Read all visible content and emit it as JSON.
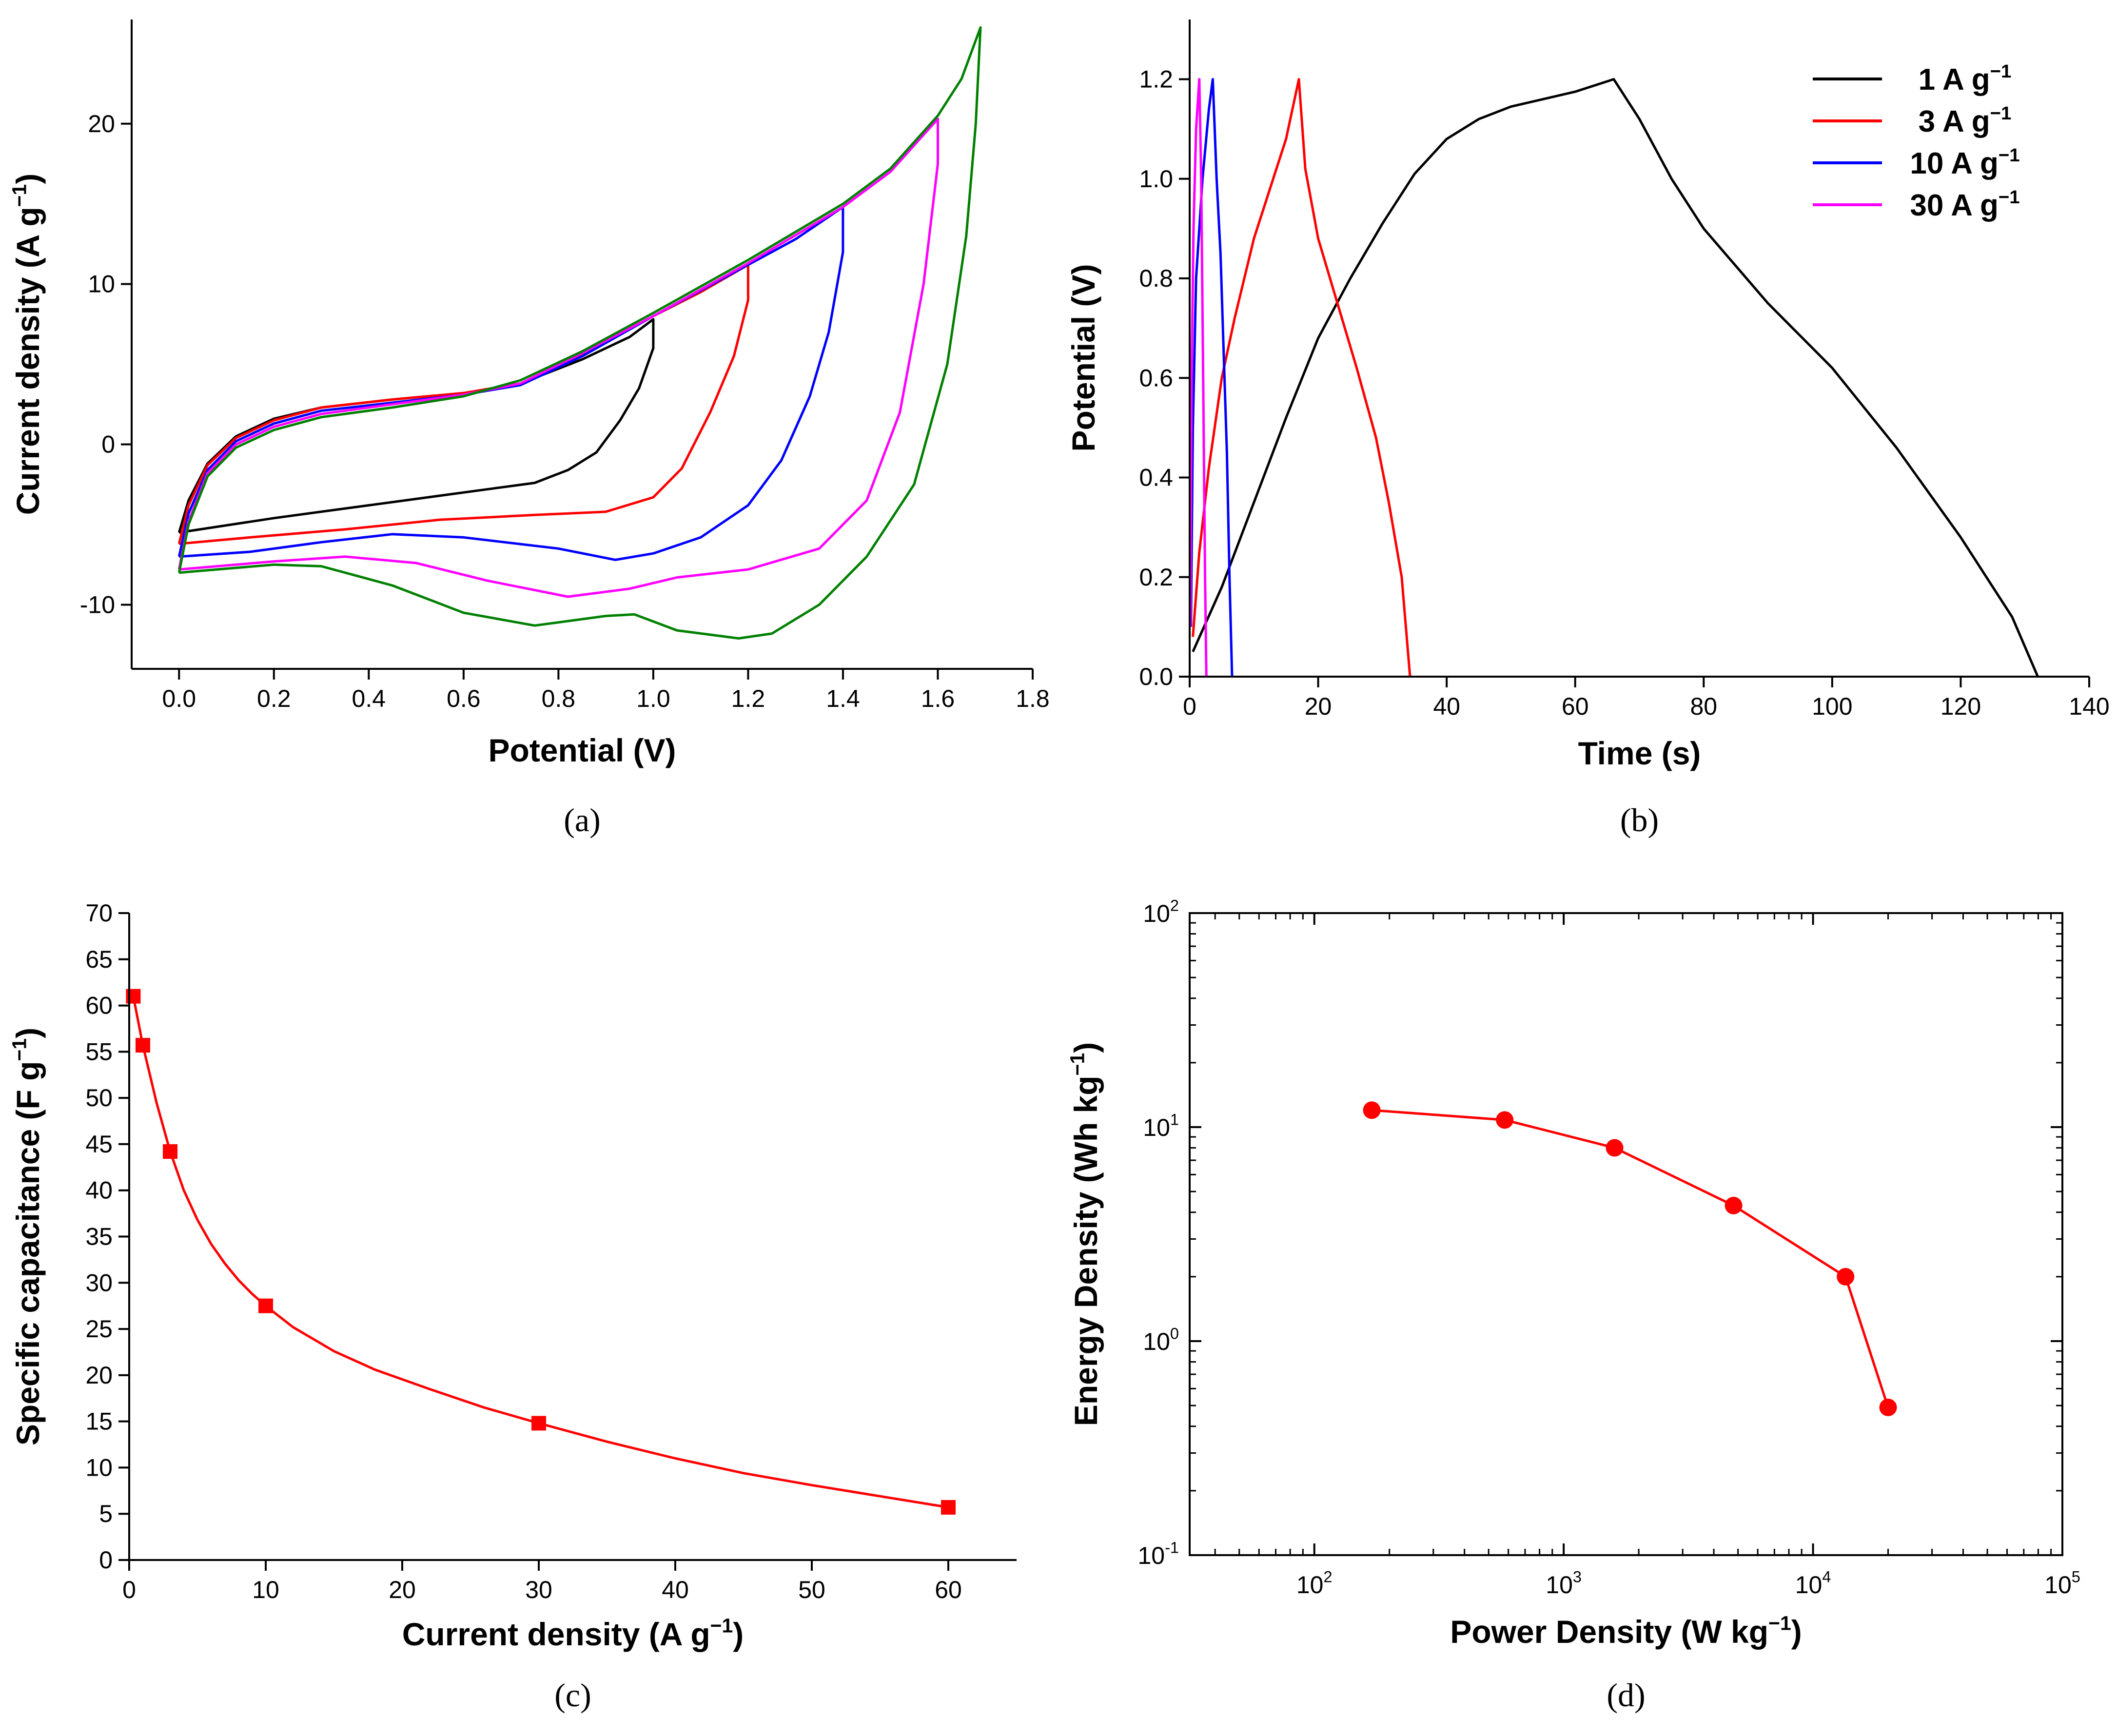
{
  "colors": {
    "black": "#000000",
    "red": "#ff0000",
    "blue": "#0000ff",
    "magenta": "#ff00ff",
    "green": "#008000"
  },
  "panels": [
    {
      "id": "a",
      "caption": "(a)",
      "xlabel": "Potential (V)",
      "ylabel": "Current density (A g⁻¹)",
      "xlim": [
        -0.1,
        1.8
      ],
      "ylim": [
        -14,
        26.5
      ],
      "xticks": [
        "0.0",
        "0.2",
        "0.4",
        "0.6",
        "0.8",
        "1.0",
        "1.2",
        "1.4",
        "1.6",
        "1.8"
      ],
      "yticks": [
        "-10",
        "0",
        "10",
        "20"
      ]
    },
    {
      "id": "b",
      "caption": "(b)",
      "xlabel": "Time (s)",
      "ylabel": "Potential (V)",
      "xlim": [
        0,
        140
      ],
      "ylim": [
        0,
        1.32
      ],
      "xticks": [
        "0",
        "20",
        "40",
        "60",
        "80",
        "100",
        "120",
        "140"
      ],
      "yticks": [
        "0.0",
        "0.2",
        "0.4",
        "0.6",
        "0.8",
        "1.0",
        "1.2"
      ],
      "legend": [
        "1 A g⁻¹",
        "3 A g⁻¹",
        "10 A g⁻¹",
        "30 A g⁻¹"
      ]
    },
    {
      "id": "c",
      "caption": "(c)",
      "xlabel": "Current density (A g⁻¹)",
      "ylabel": "Specific capacitance (F g⁻¹)",
      "xlim": [
        0,
        65
      ],
      "ylim": [
        0,
        70
      ],
      "xticks": [
        "0",
        "10",
        "20",
        "30",
        "40",
        "50",
        "60"
      ],
      "yticks": [
        "0",
        "5",
        "10",
        "15",
        "20",
        "25",
        "30",
        "35",
        "40",
        "45",
        "50",
        "55",
        "60",
        "65",
        "70"
      ]
    },
    {
      "id": "d",
      "caption": "(d)",
      "xlabel": "Power Density (W kg⁻¹)",
      "ylabel": "Energy Density (Wh kg⁻¹)",
      "xlim_log10": [
        1.5,
        5
      ],
      "ylim_log10": [
        -1,
        2
      ],
      "xticks": [
        {
          "b": "10",
          "e": "2"
        },
        {
          "b": "10",
          "e": "3"
        },
        {
          "b": "10",
          "e": "4"
        },
        {
          "b": "10",
          "e": "5"
        }
      ],
      "yticks": [
        {
          "b": "10",
          "e": "-1"
        },
        {
          "b": "10",
          "e": "0"
        },
        {
          "b": "10",
          "e": "1"
        },
        {
          "b": "10",
          "e": "2"
        }
      ]
    }
  ],
  "chart_data": [
    {
      "panel": "a",
      "type": "line",
      "series": [
        {
          "color": "black",
          "points": [
            [
              0.0,
              -5.5
            ],
            [
              0.02,
              -3.5
            ],
            [
              0.06,
              -1.2
            ],
            [
              0.12,
              0.5
            ],
            [
              0.2,
              1.6
            ],
            [
              0.3,
              2.3
            ],
            [
              0.45,
              2.8
            ],
            [
              0.6,
              3.2
            ],
            [
              0.72,
              3.8
            ],
            [
              0.85,
              5.3
            ],
            [
              0.95,
              6.7
            ],
            [
              1.0,
              7.8
            ],
            [
              1.0,
              6.0
            ],
            [
              0.97,
              3.5
            ],
            [
              0.93,
              1.5
            ],
            [
              0.88,
              -0.5
            ],
            [
              0.82,
              -1.6
            ],
            [
              0.75,
              -2.4
            ],
            [
              0.6,
              -3.0
            ],
            [
              0.4,
              -3.8
            ],
            [
              0.2,
              -4.6
            ],
            [
              0.0,
              -5.5
            ]
          ]
        },
        {
          "color": "red",
          "points": [
            [
              0.0,
              -6.2
            ],
            [
              0.02,
              -3.8
            ],
            [
              0.06,
              -1.3
            ],
            [
              0.12,
              0.4
            ],
            [
              0.2,
              1.5
            ],
            [
              0.3,
              2.3
            ],
            [
              0.45,
              2.8
            ],
            [
              0.6,
              3.2
            ],
            [
              0.72,
              3.8
            ],
            [
              0.85,
              5.6
            ],
            [
              1.0,
              8.0
            ],
            [
              1.1,
              9.5
            ],
            [
              1.2,
              11.2
            ],
            [
              1.2,
              9.0
            ],
            [
              1.17,
              5.5
            ],
            [
              1.12,
              2.0
            ],
            [
              1.06,
              -1.5
            ],
            [
              1.0,
              -3.3
            ],
            [
              0.9,
              -4.2
            ],
            [
              0.75,
              -4.4
            ],
            [
              0.55,
              -4.7
            ],
            [
              0.35,
              -5.3
            ],
            [
              0.15,
              -5.8
            ],
            [
              0.0,
              -6.2
            ]
          ]
        },
        {
          "color": "blue",
          "points": [
            [
              0.0,
              -7.0
            ],
            [
              0.02,
              -4.3
            ],
            [
              0.06,
              -1.6
            ],
            [
              0.12,
              0.2
            ],
            [
              0.2,
              1.3
            ],
            [
              0.3,
              2.1
            ],
            [
              0.45,
              2.6
            ],
            [
              0.6,
              3.1
            ],
            [
              0.72,
              3.7
            ],
            [
              0.85,
              5.5
            ],
            [
              1.0,
              8.0
            ],
            [
              1.2,
              11.2
            ],
            [
              1.3,
              12.8
            ],
            [
              1.4,
              14.8
            ],
            [
              1.4,
              12.0
            ],
            [
              1.37,
              7.0
            ],
            [
              1.33,
              3.0
            ],
            [
              1.27,
              -1.0
            ],
            [
              1.2,
              -3.8
            ],
            [
              1.1,
              -5.8
            ],
            [
              1.0,
              -6.8
            ],
            [
              0.92,
              -7.2
            ],
            [
              0.8,
              -6.5
            ],
            [
              0.6,
              -5.8
            ],
            [
              0.45,
              -5.6
            ],
            [
              0.3,
              -6.1
            ],
            [
              0.15,
              -6.7
            ],
            [
              0.0,
              -7.0
            ]
          ]
        },
        {
          "color": "magenta",
          "points": [
            [
              0.0,
              -7.8
            ],
            [
              0.02,
              -4.8
            ],
            [
              0.06,
              -1.8
            ],
            [
              0.12,
              0.0
            ],
            [
              0.2,
              1.1
            ],
            [
              0.3,
              1.9
            ],
            [
              0.45,
              2.5
            ],
            [
              0.6,
              3.1
            ],
            [
              0.72,
              3.8
            ],
            [
              0.85,
              5.7
            ],
            [
              1.0,
              8.0
            ],
            [
              1.2,
              11.3
            ],
            [
              1.4,
              14.8
            ],
            [
              1.5,
              17.0
            ],
            [
              1.6,
              20.3
            ],
            [
              1.6,
              17.5
            ],
            [
              1.57,
              10.0
            ],
            [
              1.52,
              2.0
            ],
            [
              1.45,
              -3.5
            ],
            [
              1.35,
              -6.5
            ],
            [
              1.2,
              -7.8
            ],
            [
              1.05,
              -8.3
            ],
            [
              0.95,
              -9.0
            ],
            [
              0.82,
              -9.5
            ],
            [
              0.65,
              -8.5
            ],
            [
              0.5,
              -7.4
            ],
            [
              0.35,
              -7.0
            ],
            [
              0.2,
              -7.3
            ],
            [
              0.0,
              -7.8
            ]
          ]
        },
        {
          "color": "green",
          "points": [
            [
              0.0,
              -8.0
            ],
            [
              0.02,
              -5.0
            ],
            [
              0.06,
              -2.0
            ],
            [
              0.12,
              -0.2
            ],
            [
              0.2,
              0.9
            ],
            [
              0.3,
              1.7
            ],
            [
              0.45,
              2.3
            ],
            [
              0.6,
              3.0
            ],
            [
              0.72,
              4.0
            ],
            [
              0.85,
              5.8
            ],
            [
              1.0,
              8.2
            ],
            [
              1.2,
              11.5
            ],
            [
              1.4,
              15.0
            ],
            [
              1.5,
              17.2
            ],
            [
              1.6,
              20.5
            ],
            [
              1.65,
              22.8
            ],
            [
              1.69,
              26.0
            ],
            [
              1.68,
              20.0
            ],
            [
              1.66,
              13.0
            ],
            [
              1.62,
              5.0
            ],
            [
              1.55,
              -2.5
            ],
            [
              1.45,
              -7.0
            ],
            [
              1.35,
              -10.0
            ],
            [
              1.25,
              -11.8
            ],
            [
              1.18,
              -12.1
            ],
            [
              1.05,
              -11.6
            ],
            [
              0.96,
              -10.6
            ],
            [
              0.9,
              -10.7
            ],
            [
              0.75,
              -11.3
            ],
            [
              0.6,
              -10.5
            ],
            [
              0.45,
              -8.8
            ],
            [
              0.3,
              -7.6
            ],
            [
              0.2,
              -7.5
            ],
            [
              0.0,
              -8.0
            ]
          ]
        }
      ]
    },
    {
      "panel": "b",
      "type": "line",
      "series": [
        {
          "color": "black",
          "name": "1 A g⁻¹",
          "points": [
            [
              0.5,
              0.05
            ],
            [
              5,
              0.18
            ],
            [
              10,
              0.35
            ],
            [
              15,
              0.52
            ],
            [
              20,
              0.68
            ],
            [
              25,
              0.8
            ],
            [
              30,
              0.91
            ],
            [
              35,
              1.01
            ],
            [
              40,
              1.08
            ],
            [
              45,
              1.12
            ],
            [
              50,
              1.145
            ],
            [
              55,
              1.16
            ],
            [
              60,
              1.175
            ],
            [
              66,
              1.2
            ],
            [
              70,
              1.12
            ],
            [
              75,
              1.0
            ],
            [
              80,
              0.9
            ],
            [
              90,
              0.75
            ],
            [
              100,
              0.62
            ],
            [
              110,
              0.46
            ],
            [
              120,
              0.28
            ],
            [
              128,
              0.12
            ],
            [
              132,
              0.0
            ]
          ]
        },
        {
          "color": "red",
          "name": "3 A g⁻¹",
          "points": [
            [
              0.5,
              0.08
            ],
            [
              1.5,
              0.25
            ],
            [
              3,
              0.42
            ],
            [
              5,
              0.6
            ],
            [
              7,
              0.72
            ],
            [
              10,
              0.88
            ],
            [
              13,
              1.0
            ],
            [
              15,
              1.08
            ],
            [
              17,
              1.2
            ],
            [
              18,
              1.02
            ],
            [
              20,
              0.88
            ],
            [
              23,
              0.75
            ],
            [
              26,
              0.62
            ],
            [
              29,
              0.48
            ],
            [
              31,
              0.35
            ],
            [
              33,
              0.2
            ],
            [
              34.3,
              0.0
            ]
          ]
        },
        {
          "color": "blue",
          "name": "10 A g⁻¹",
          "points": [
            [
              0.2,
              0.1
            ],
            [
              0.5,
              0.5
            ],
            [
              1,
              0.8
            ],
            [
              2,
              1.0
            ],
            [
              3,
              1.14
            ],
            [
              3.6,
              1.2
            ],
            [
              4.2,
              1.0
            ],
            [
              4.8,
              0.85
            ],
            [
              5.3,
              0.65
            ],
            [
              5.8,
              0.45
            ],
            [
              6.2,
              0.2
            ],
            [
              6.6,
              0.0
            ]
          ]
        },
        {
          "color": "magenta",
          "name": "30 A g⁻¹",
          "points": [
            [
              0.1,
              0.1
            ],
            [
              0.3,
              0.6
            ],
            [
              0.6,
              0.9
            ],
            [
              1.0,
              1.1
            ],
            [
              1.5,
              1.2
            ],
            [
              1.8,
              1.0
            ],
            [
              2.1,
              0.6
            ],
            [
              2.4,
              0.2
            ],
            [
              2.6,
              0.0
            ]
          ]
        }
      ]
    },
    {
      "panel": "c",
      "type": "line",
      "color": "red",
      "x": [
        0.3,
        1,
        3,
        10,
        30,
        60
      ],
      "y": [
        61,
        55.7,
        44.2,
        27.5,
        14.8,
        5.7
      ],
      "curve": [
        [
          0.3,
          61
        ],
        [
          1,
          55.7
        ],
        [
          2,
          49.5
        ],
        [
          3,
          44.2
        ],
        [
          4,
          40.0
        ],
        [
          5,
          36.8
        ],
        [
          6,
          34.2
        ],
        [
          7,
          32.1
        ],
        [
          8,
          30.3
        ],
        [
          9,
          28.8
        ],
        [
          10,
          27.5
        ],
        [
          12,
          25.2
        ],
        [
          15,
          22.6
        ],
        [
          18,
          20.6
        ],
        [
          22,
          18.5
        ],
        [
          26,
          16.5
        ],
        [
          30,
          14.8
        ],
        [
          35,
          12.8
        ],
        [
          40,
          11.0
        ],
        [
          45,
          9.4
        ],
        [
          50,
          8.1
        ],
        [
          55,
          6.9
        ],
        [
          60,
          5.7
        ]
      ]
    },
    {
      "panel": "d",
      "type": "scatter",
      "color": "red",
      "x": [
        170,
        580,
        1600,
        4800,
        13500,
        20000
      ],
      "y": [
        12,
        10.8,
        8.0,
        4.3,
        2.0,
        0.49
      ]
    }
  ]
}
